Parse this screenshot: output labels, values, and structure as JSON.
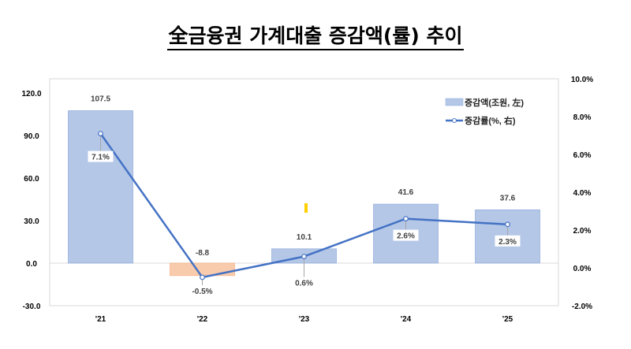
{
  "chart_data": {
    "type": "bar+line",
    "title": "全금융권 가계대출 증감액(률) 추이",
    "categories": [
      "'21",
      "'22",
      "'23",
      "'24",
      "'25"
    ],
    "series": [
      {
        "name": "증감액(조원, 左)",
        "type": "bar",
        "axis": "left",
        "values": [
          107.5,
          -8.8,
          10.1,
          41.6,
          37.6
        ],
        "labels": [
          "107.5",
          "-8.8",
          "10.1",
          "41.6",
          "37.6"
        ],
        "color": "#b4c7e7",
        "negative_color": "#f8cbad"
      },
      {
        "name": "증감률(%, 右)",
        "type": "line",
        "axis": "right",
        "values": [
          7.1,
          -0.5,
          0.6,
          2.6,
          2.3
        ],
        "labels": [
          "7.1%",
          "-0.5%",
          "0.6%",
          "2.6%",
          "2.3%"
        ],
        "color": "#4472c4"
      }
    ],
    "left_axis": {
      "ylim": [
        -30,
        130
      ],
      "ticks": [
        -30,
        0,
        30,
        60,
        90,
        120
      ],
      "tick_labels": [
        "-30.0",
        "0.0",
        "30.0",
        "60.0",
        "90.0",
        "120.0"
      ]
    },
    "right_axis": {
      "ylim": [
        -2,
        10
      ],
      "ticks": [
        -2,
        0,
        2,
        4,
        6,
        8,
        10
      ],
      "tick_labels": [
        "-2.0%",
        "0.0%",
        "2.0%",
        "4.0%",
        "6.0%",
        "8.0%",
        "10.0%"
      ]
    },
    "legend": "top-right",
    "grid": false
  }
}
